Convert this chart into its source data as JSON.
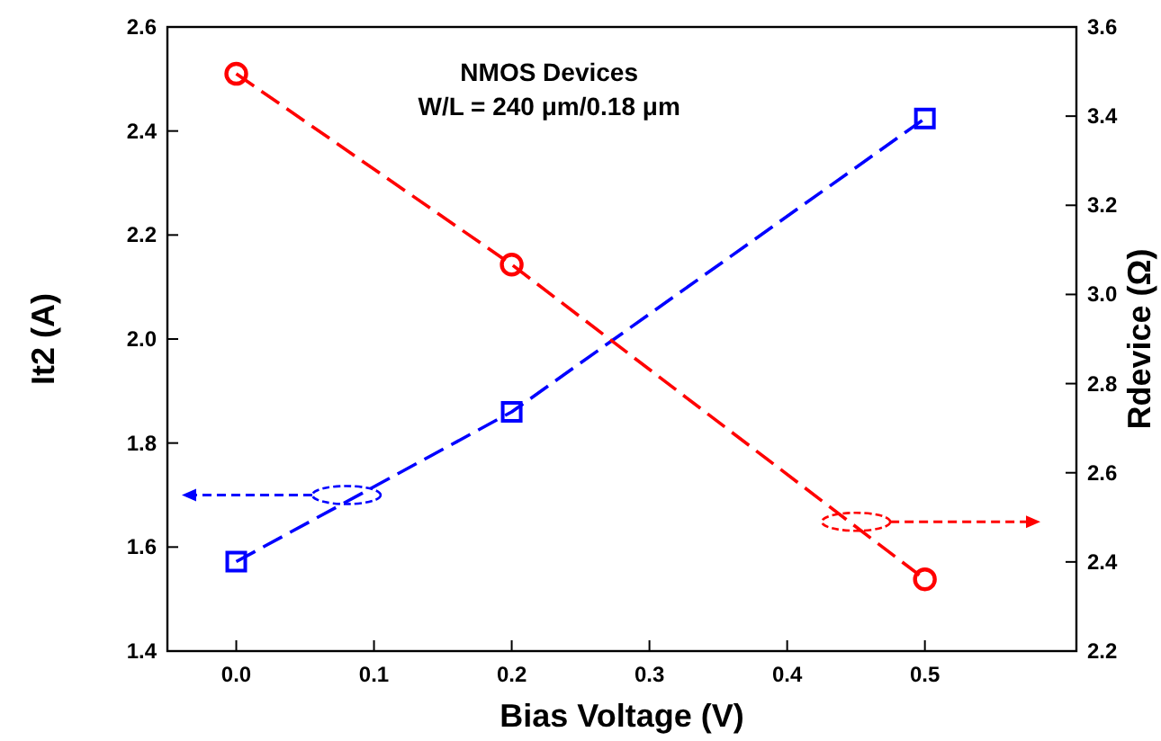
{
  "chart_data": {
    "type": "line",
    "xlabel": "Bias Voltage (V)",
    "ylabel": "It2 (A)",
    "y2label": "Rdevice (Ω)",
    "annotations": [
      "NMOS Devices",
      "W/L = 240 μm/0.18 μm"
    ],
    "x": [
      0,
      0.2,
      0.5
    ],
    "series": [
      {
        "color": "#0000ff",
        "values": [
          1.572,
          1.86,
          2.424
        ],
        "marker": "square"
      },
      {
        "color": "#ff0000",
        "values": [
          3.495,
          3.067,
          2.361
        ],
        "marker": "circle",
        "axis": "y2"
      }
    ],
    "xlim": [
      -0.05,
      0.61
    ],
    "xticks": [
      {
        "value": 0,
        "label": "0.0"
      },
      0.1,
      0.2,
      0.3,
      0.4,
      0.5
    ],
    "ylim": [
      1.4,
      2.6
    ],
    "yticks": [
      1.4,
      1.6,
      1.8,
      {
        "value": 2,
        "label": "2.0"
      },
      2.2,
      2.4,
      2.6
    ],
    "y2lim": [
      2.2,
      3.6
    ],
    "y2ticks": [
      2.2,
      2.4,
      2.6,
      2.8,
      {
        "value": 3,
        "label": "3.0"
      },
      3.2,
      3.4,
      3.6
    ],
    "line_style": "dashed"
  }
}
